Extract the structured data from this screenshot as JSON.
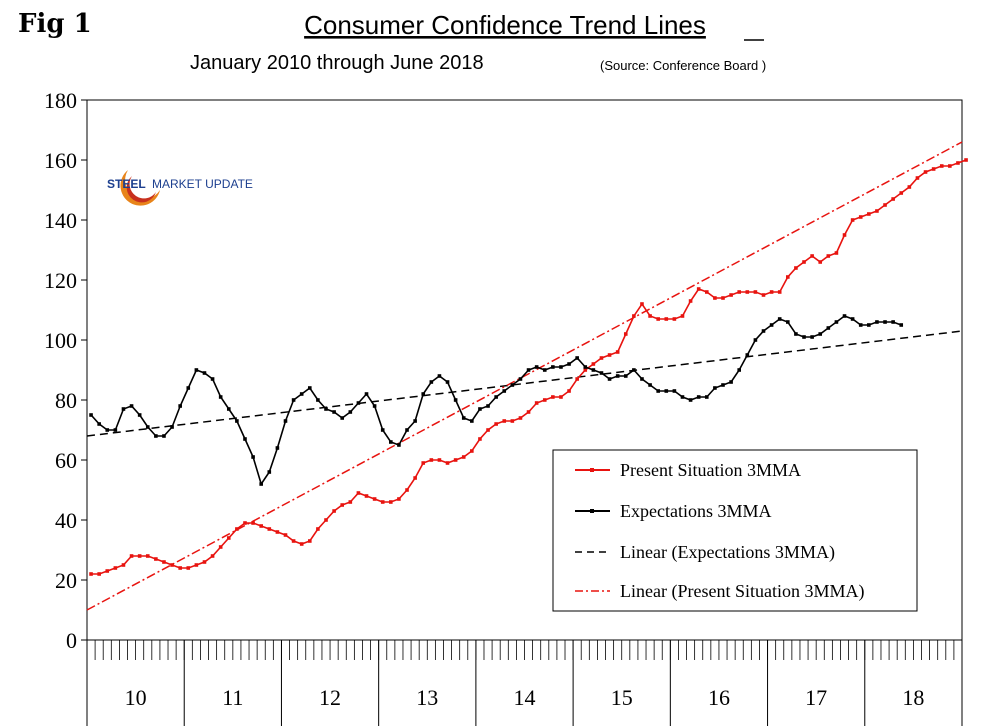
{
  "figure": {
    "label": "Fig 1",
    "source": "(Source: Conference Board )",
    "logo_text_bold": "STEEL",
    "logo_text_rest": "MARKET UPDATE"
  },
  "chart_data": {
    "type": "line",
    "title": "Consumer Confidence Trend Lines",
    "subtitle": "January 2010 through June 2018",
    "xlabel": "",
    "ylabel": "",
    "ylim": [
      0,
      180
    ],
    "y_ticks": [
      "0",
      "20",
      "40",
      "60",
      "80",
      "100",
      "120",
      "140",
      "160",
      "180"
    ],
    "x_year_labels": [
      "10",
      "11",
      "12",
      "13",
      "14",
      "15",
      "16",
      "17",
      "18"
    ],
    "x_range_months": 108,
    "grid": false,
    "legend_placement": "bottom-right",
    "colors": {
      "present": "#e8130f",
      "expectations": "#000000"
    },
    "series": [
      {
        "name": "Present Situation 3MMA",
        "color": "#e8130f",
        "start": "2010-01",
        "values": [
          22,
          22,
          23,
          24,
          25,
          28,
          28,
          28,
          27,
          26,
          25,
          24,
          24,
          25,
          26,
          28,
          31,
          34,
          37,
          39,
          39,
          38,
          37,
          36,
          35,
          33,
          32,
          33,
          37,
          40,
          43,
          45,
          46,
          49,
          48,
          47,
          46,
          46,
          47,
          50,
          54,
          59,
          60,
          60,
          59,
          60,
          61,
          63,
          67,
          70,
          72,
          73,
          73,
          74,
          76,
          79,
          80,
          81,
          81,
          83,
          87,
          90,
          92,
          94,
          95,
          96,
          102,
          108,
          112,
          108,
          107,
          107,
          107,
          108,
          113,
          117,
          116,
          114,
          114,
          115,
          116,
          116,
          116,
          115,
          116,
          116,
          121,
          124,
          126,
          128,
          126,
          128,
          129,
          135,
          140,
          141,
          142,
          143,
          145,
          147,
          149,
          151,
          154,
          156,
          157,
          158,
          158,
          159,
          160
        ]
      },
      {
        "name": "Expectations 3MMA",
        "color": "#000000",
        "start": "2010-01",
        "values": [
          75,
          72,
          70,
          70,
          77,
          78,
          75,
          71,
          68,
          68,
          71,
          78,
          84,
          90,
          89,
          87,
          81,
          77,
          73,
          67,
          61,
          52,
          56,
          64,
          73,
          80,
          82,
          84,
          80,
          77,
          76,
          74,
          76,
          79,
          82,
          78,
          70,
          66,
          65,
          70,
          73,
          82,
          86,
          88,
          86,
          80,
          74,
          73,
          77,
          78,
          81,
          83,
          85,
          87,
          90,
          91,
          90,
          91,
          91,
          92,
          94,
          91,
          90,
          89,
          87,
          88,
          88,
          90,
          87,
          85,
          83,
          83,
          83,
          81,
          80,
          81,
          81,
          84,
          85,
          86,
          90,
          95,
          100,
          103,
          105,
          107,
          106,
          102,
          101,
          101,
          102,
          104,
          106,
          108,
          107,
          105,
          105,
          106,
          106,
          106,
          105
        ]
      },
      {
        "name": "Linear (Expectations 3MMA)",
        "color": "#000000",
        "dash": "dashed",
        "start_value": 68,
        "end_value": 103
      },
      {
        "name": "Linear (Present Situation 3MMA)",
        "color": "#e8130f",
        "dash": "dash-dot",
        "start_value": 10,
        "end_value": 166
      }
    ]
  }
}
